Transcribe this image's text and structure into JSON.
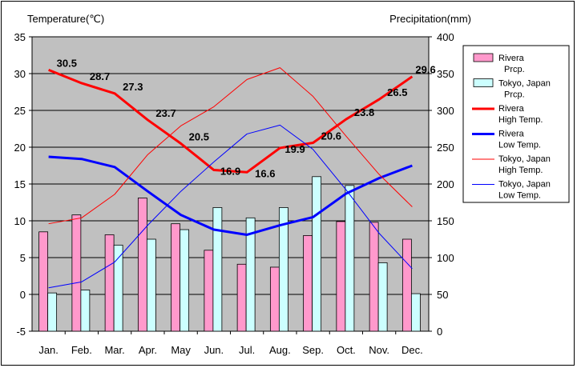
{
  "chart_data": {
    "type": "bar+line",
    "title": "",
    "ylabel_left": "Temperature(℃)",
    "ylabel_right": "Precipitation(mm)",
    "ylim_left": [
      -5,
      35
    ],
    "ylim_right": [
      0,
      400
    ],
    "yticks_left": [
      "35",
      "30",
      "25",
      "20",
      "15",
      "10",
      "5",
      "0",
      "-5"
    ],
    "yticks_right": [
      "400",
      "350",
      "300",
      "250",
      "200",
      "150",
      "100",
      "50",
      "0"
    ],
    "categories": [
      "Jan.",
      "Feb.",
      "Mar.",
      "Apr.",
      "May",
      "Jun.",
      "Jul.",
      "Aug.",
      "Sep.",
      "Oct.",
      "Nov.",
      "Dec."
    ],
    "grid": true,
    "legend_position": "right",
    "series": [
      {
        "name": "Rivera\nPrcp.",
        "kind": "bar",
        "axis": "right",
        "color": "#ff99cc",
        "values": [
          135,
          158,
          131,
          181,
          146,
          110,
          91,
          87,
          130,
          149,
          148,
          125
        ]
      },
      {
        "name": "Tokyo, Japan\nPrcp.",
        "kind": "bar",
        "axis": "right",
        "color": "#ccffff",
        "values": [
          52,
          56,
          117,
          125,
          138,
          168,
          154,
          168,
          210,
          198,
          93,
          51
        ]
      },
      {
        "name": "Rivera\nHigh Temp.",
        "kind": "line",
        "axis": "left",
        "color": "#ff0000",
        "width": 3,
        "values": [
          30.5,
          28.7,
          27.3,
          23.7,
          20.5,
          16.9,
          16.6,
          19.9,
          20.6,
          23.8,
          26.5,
          29.6
        ],
        "labels": [
          "30.5",
          "28.7",
          "27.3",
          "23.7",
          "20.5",
          "16.9",
          "16.6",
          "19.9",
          "20.6",
          "23.8",
          "26.5",
          "29.6"
        ]
      },
      {
        "name": "Rivera\nLow Temp.",
        "kind": "line",
        "axis": "left",
        "color": "#0000ff",
        "width": 3,
        "values": [
          18.7,
          18.4,
          17.3,
          14.0,
          10.8,
          8.8,
          8.1,
          9.4,
          10.5,
          13.7,
          15.8,
          17.5
        ]
      },
      {
        "name": "Tokyo, Japan\nHigh Temp.",
        "kind": "line",
        "axis": "left",
        "color": "#ff0000",
        "width": 1,
        "values": [
          9.6,
          10.4,
          13.6,
          19.0,
          22.9,
          25.5,
          29.2,
          30.8,
          26.9,
          21.5,
          16.3,
          11.9
        ]
      },
      {
        "name": "Tokyo, Japan\nLow Temp.",
        "kind": "line",
        "axis": "left",
        "color": "#0000ff",
        "width": 1,
        "values": [
          0.9,
          1.7,
          4.4,
          9.4,
          14.0,
          18.0,
          21.8,
          23.0,
          19.7,
          14.2,
          8.3,
          3.5
        ]
      }
    ]
  }
}
